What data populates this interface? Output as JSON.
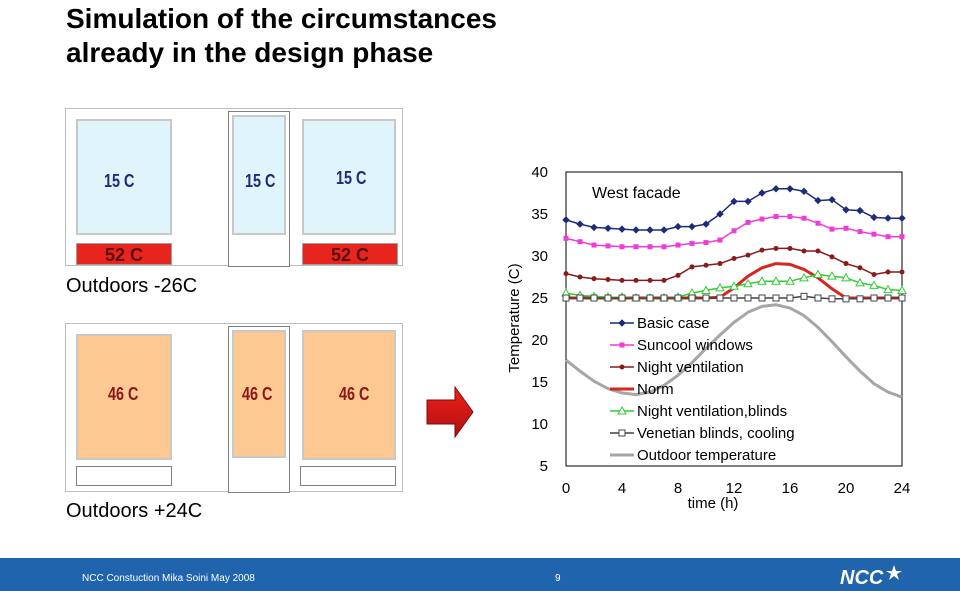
{
  "slide": {
    "title_line1": "Simulation of the circumstances",
    "title_line2": "already in the design phase"
  },
  "winter": {
    "caption": "Outdoors -26C",
    "window_temps": [
      "15 C",
      "15 C",
      "15 C"
    ],
    "heater_temps": [
      "52 C",
      "52 C"
    ]
  },
  "summer": {
    "caption": "Outdoors +24C",
    "window_temps": [
      "46 C",
      "46 C",
      "46 C"
    ]
  },
  "footer": {
    "text": "NCC Constuction Mika Soini May 2008",
    "page": "9",
    "logo_text": "NCC"
  },
  "chart_data": {
    "type": "line",
    "title": "West facade",
    "xlabel": "time (h)",
    "ylabel": "Temperature (C)",
    "xlim": [
      0,
      24
    ],
    "ylim": [
      5,
      40
    ],
    "xticks": [
      "0",
      "4",
      "8",
      "12",
      "16",
      "20",
      "24"
    ],
    "yticks": [
      "5",
      "10",
      "15",
      "20",
      "25",
      "30",
      "35",
      "40"
    ],
    "x": [
      0,
      1,
      2,
      3,
      4,
      5,
      6,
      7,
      8,
      9,
      10,
      11,
      12,
      13,
      14,
      15,
      16,
      17,
      18,
      19,
      20,
      21,
      22,
      23,
      24
    ],
    "series": [
      {
        "name": "Basic case",
        "color": "#1f2a7a",
        "marker": "diamond",
        "values": [
          34.3,
          33.8,
          33.4,
          33.3,
          33.2,
          33.1,
          33.1,
          33.1,
          33.5,
          33.5,
          33.8,
          35,
          36.5,
          36.5,
          37.5,
          38,
          38,
          37.7,
          36.6,
          36.7,
          35.5,
          35.4,
          34.6,
          34.5,
          34.5
        ]
      },
      {
        "name": "Suncool windows",
        "color": "#ee3cd7",
        "marker": "square",
        "values": [
          32.1,
          31.7,
          31.3,
          31.2,
          31.1,
          31.1,
          31.1,
          31.1,
          31.3,
          31.5,
          31.6,
          31.9,
          33,
          34,
          34.4,
          34.7,
          34.7,
          34.5,
          33.9,
          33.2,
          33.3,
          32.9,
          32.6,
          32.3,
          32.3
        ]
      },
      {
        "name": "Night ventilation",
        "color": "#8b1a1a",
        "marker": "circle",
        "values": [
          27.9,
          27.5,
          27.3,
          27.2,
          27.1,
          27.1,
          27.1,
          27.1,
          27.7,
          28.7,
          28.9,
          29.1,
          29.7,
          30.1,
          30.7,
          30.9,
          30.9,
          30.6,
          30.6,
          29.9,
          29.1,
          28.6,
          27.8,
          28.1,
          28.1
        ]
      },
      {
        "name": "Norm",
        "color": "#d6261e",
        "marker": "none",
        "values": [
          25,
          25,
          25,
          25,
          25,
          25,
          25,
          25,
          25,
          25,
          25,
          25.1,
          26.2,
          27.6,
          28.6,
          29.1,
          29,
          28.4,
          27.4,
          26.1,
          25,
          25,
          25,
          25,
          25
        ]
      },
      {
        "name": "Night ventilation,blinds",
        "color": "#33cc33",
        "marker": "triangle",
        "values": [
          25.6,
          25.3,
          25.2,
          25.1,
          25.1,
          25,
          25,
          25,
          25.1,
          25.6,
          25.9,
          26.2,
          26.4,
          26.7,
          27,
          27,
          27,
          27.4,
          27.8,
          27.6,
          27.4,
          26.8,
          26.5,
          26,
          25.9
        ]
      },
      {
        "name": "Venetian blinds, cooling",
        "color": "#444444",
        "marker": "square-open",
        "values": [
          25,
          25,
          25,
          25,
          25,
          25,
          25,
          25,
          25,
          25,
          25,
          25,
          25,
          25,
          25,
          25,
          25,
          25.2,
          25,
          24.9,
          24.9,
          24.9,
          25,
          25,
          25
        ]
      },
      {
        "name": "Outdoor temperature",
        "color": "#a6a6a6",
        "marker": "none",
        "values": [
          17.6,
          16.3,
          15.1,
          14.2,
          13.7,
          13.5,
          13.8,
          14.6,
          15.8,
          17.3,
          19,
          20.6,
          22.1,
          23.3,
          24,
          24.2,
          23.8,
          22.9,
          21.5,
          19.8,
          18,
          16.3,
          14.8,
          13.8,
          13.2
        ]
      }
    ]
  }
}
